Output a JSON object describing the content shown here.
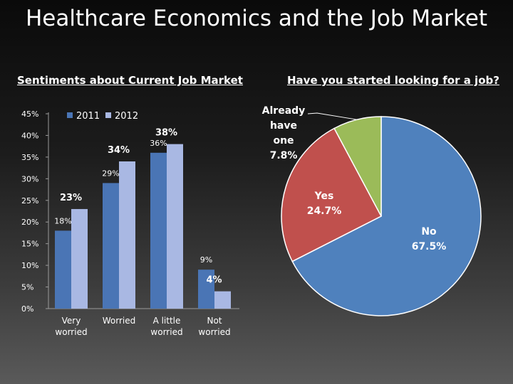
{
  "slide": {
    "title": "Healthcare Economics and the Job Market"
  },
  "chart_data": [
    {
      "type": "bar",
      "title": "Sentiments about Current Job Market",
      "categories": [
        [
          "Very",
          "worried"
        ],
        [
          "Worried"
        ],
        [
          "A little",
          "worried"
        ],
        [
          "Not",
          "worried"
        ]
      ],
      "series": [
        {
          "name": "2011",
          "values": [
            18,
            29,
            36,
            9
          ],
          "labels": [
            "18%",
            "29%",
            "36%",
            "9%"
          ],
          "color": "#4a75b5"
        },
        {
          "name": "2012",
          "values": [
            23,
            34,
            38,
            4
          ],
          "labels": [
            "23%",
            "34%",
            "38%",
            "4%"
          ],
          "color": "#a9b8e3"
        }
      ],
      "ylim": [
        0,
        45
      ],
      "yticks": [
        0,
        5,
        10,
        15,
        20,
        25,
        30,
        35,
        40,
        45
      ],
      "ytick_labels": [
        "0%",
        "5%",
        "10%",
        "15%",
        "20%",
        "25%",
        "30%",
        "35%",
        "40%",
        "45%"
      ],
      "legend": "top-left",
      "grid": false
    },
    {
      "type": "pie",
      "title": "Have you started looking for a job?",
      "slices": [
        {
          "label": "No",
          "value": 67.5,
          "display": "67.5%",
          "color": "#4f81bd"
        },
        {
          "label": "Yes",
          "value": 24.7,
          "display": "24.7%",
          "color": "#c0504d"
        },
        {
          "label": "Already have one",
          "label_lines": [
            "Already",
            "have",
            "one"
          ],
          "value": 7.8,
          "display": "7.8%",
          "color": "#9bbb59"
        }
      ]
    }
  ]
}
